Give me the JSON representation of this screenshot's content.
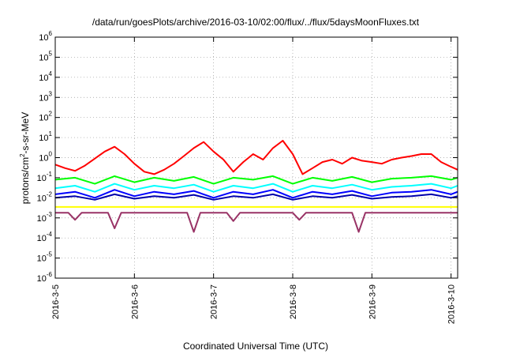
{
  "chart_data": {
    "type": "line",
    "title": "/data/run/goesPlots/archive/2016-03-10/02:00/flux/../flux/5daysMoonFluxes.txt",
    "xlabel": "Coordinated Universal Time (UTC)",
    "ylabel": "protons/cm2-s-sr-MeV",
    "ylabel_parts": [
      "protons/cm",
      "2",
      "-s-sr-MeV"
    ],
    "y_scale": "log",
    "ylim": [
      1e-06,
      1000000.0
    ],
    "xlim": [
      "2016-03-05",
      "2016-03-10 02:00"
    ],
    "grid": true,
    "legend": "none",
    "x_ticks": [
      "2016-3-5",
      "2016-3-6",
      "2016-3-7",
      "2016-3-8",
      "2016-3-9",
      "2016-3-10"
    ],
    "y_ticks": [
      {
        "base": "10",
        "exp": "-6"
      },
      {
        "base": "10",
        "exp": "-5"
      },
      {
        "base": "10",
        "exp": "-4"
      },
      {
        "base": "10",
        "exp": "-3"
      },
      {
        "base": "10",
        "exp": "-2"
      },
      {
        "base": "10",
        "exp": "-1"
      },
      {
        "base": "10",
        "exp": "0"
      },
      {
        "base": "10",
        "exp": "1"
      },
      {
        "base": "10",
        "exp": "2"
      },
      {
        "base": "10",
        "exp": "3"
      },
      {
        "base": "10",
        "exp": "4"
      },
      {
        "base": "10",
        "exp": "5"
      },
      {
        "base": "10",
        "exp": "6"
      }
    ],
    "series": [
      {
        "color": "#ff0000",
        "x": [
          "2016-03-05 00:00",
          "2016-03-05 03:00",
          "2016-03-05 06:00",
          "2016-03-05 09:00",
          "2016-03-05 12:00",
          "2016-03-05 15:00",
          "2016-03-05 18:00",
          "2016-03-05 21:00",
          "2016-03-06 00:00",
          "2016-03-06 03:00",
          "2016-03-06 06:00",
          "2016-03-06 09:00",
          "2016-03-06 12:00",
          "2016-03-06 15:00",
          "2016-03-06 18:00",
          "2016-03-06 21:00",
          "2016-03-07 00:00",
          "2016-03-07 03:00",
          "2016-03-07 06:00",
          "2016-03-07 09:00",
          "2016-03-07 12:00",
          "2016-03-07 15:00",
          "2016-03-07 18:00",
          "2016-03-07 21:00",
          "2016-03-08 00:00",
          "2016-03-08 03:00",
          "2016-03-08 06:00",
          "2016-03-08 09:00",
          "2016-03-08 12:00",
          "2016-03-08 15:00",
          "2016-03-08 18:00",
          "2016-03-08 21:00",
          "2016-03-09 00:00",
          "2016-03-09 03:00",
          "2016-03-09 06:00",
          "2016-03-09 09:00",
          "2016-03-09 12:00",
          "2016-03-09 15:00",
          "2016-03-09 18:00",
          "2016-03-09 21:00",
          "2016-03-10 00:00",
          "2016-03-10 02:00"
        ],
        "y": [
          0.45,
          0.3,
          0.22,
          0.4,
          0.9,
          2.0,
          3.5,
          1.5,
          0.5,
          0.2,
          0.15,
          0.25,
          0.5,
          1.2,
          3.0,
          6.0,
          2.0,
          0.8,
          0.2,
          0.6,
          1.5,
          0.8,
          3.0,
          7.0,
          1.5,
          0.15,
          0.3,
          0.6,
          0.8,
          0.5,
          1.0,
          0.7,
          0.6,
          0.5,
          0.8,
          1.0,
          1.2,
          1.5,
          1.5,
          0.6,
          0.35,
          0.25
        ]
      },
      {
        "color": "#00ff00",
        "x": [
          "2016-03-05 00:00",
          "2016-03-05 06:00",
          "2016-03-05 12:00",
          "2016-03-05 18:00",
          "2016-03-06 00:00",
          "2016-03-06 06:00",
          "2016-03-06 12:00",
          "2016-03-06 18:00",
          "2016-03-07 00:00",
          "2016-03-07 06:00",
          "2016-03-07 12:00",
          "2016-03-07 18:00",
          "2016-03-08 00:00",
          "2016-03-08 06:00",
          "2016-03-08 12:00",
          "2016-03-08 18:00",
          "2016-03-09 00:00",
          "2016-03-09 06:00",
          "2016-03-09 12:00",
          "2016-03-09 18:00",
          "2016-03-10 00:00",
          "2016-03-10 02:00"
        ],
        "y": [
          0.08,
          0.1,
          0.05,
          0.12,
          0.06,
          0.1,
          0.07,
          0.11,
          0.05,
          0.1,
          0.08,
          0.12,
          0.05,
          0.1,
          0.07,
          0.11,
          0.06,
          0.09,
          0.1,
          0.12,
          0.08,
          0.1
        ]
      },
      {
        "color": "#00ffff",
        "x": [
          "2016-03-05 00:00",
          "2016-03-05 06:00",
          "2016-03-05 12:00",
          "2016-03-05 18:00",
          "2016-03-06 00:00",
          "2016-03-06 06:00",
          "2016-03-06 12:00",
          "2016-03-06 18:00",
          "2016-03-07 00:00",
          "2016-03-07 06:00",
          "2016-03-07 12:00",
          "2016-03-07 18:00",
          "2016-03-08 00:00",
          "2016-03-08 06:00",
          "2016-03-08 12:00",
          "2016-03-08 18:00",
          "2016-03-09 00:00",
          "2016-03-09 06:00",
          "2016-03-09 12:00",
          "2016-03-09 18:00",
          "2016-03-10 00:00",
          "2016-03-10 02:00"
        ],
        "y": [
          0.03,
          0.04,
          0.02,
          0.05,
          0.025,
          0.04,
          0.03,
          0.045,
          0.02,
          0.04,
          0.03,
          0.05,
          0.02,
          0.04,
          0.03,
          0.045,
          0.025,
          0.035,
          0.04,
          0.05,
          0.03,
          0.04
        ]
      },
      {
        "color": "#0000ff",
        "x": [
          "2016-03-05 00:00",
          "2016-03-05 06:00",
          "2016-03-05 12:00",
          "2016-03-05 18:00",
          "2016-03-06 00:00",
          "2016-03-06 06:00",
          "2016-03-06 12:00",
          "2016-03-06 18:00",
          "2016-03-07 00:00",
          "2016-03-07 06:00",
          "2016-03-07 12:00",
          "2016-03-07 18:00",
          "2016-03-08 00:00",
          "2016-03-08 06:00",
          "2016-03-08 12:00",
          "2016-03-08 18:00",
          "2016-03-09 00:00",
          "2016-03-09 06:00",
          "2016-03-09 12:00",
          "2016-03-09 18:00",
          "2016-03-10 00:00",
          "2016-03-10 02:00"
        ],
        "y": [
          0.015,
          0.02,
          0.01,
          0.025,
          0.012,
          0.02,
          0.015,
          0.022,
          0.01,
          0.02,
          0.015,
          0.025,
          0.01,
          0.02,
          0.015,
          0.022,
          0.012,
          0.018,
          0.02,
          0.025,
          0.015,
          0.02
        ]
      },
      {
        "color": "#0000aa",
        "x": [
          "2016-03-05 00:00",
          "2016-03-05 06:00",
          "2016-03-05 12:00",
          "2016-03-05 18:00",
          "2016-03-06 00:00",
          "2016-03-06 06:00",
          "2016-03-06 12:00",
          "2016-03-06 18:00",
          "2016-03-07 00:00",
          "2016-03-07 06:00",
          "2016-03-07 12:00",
          "2016-03-07 18:00",
          "2016-03-08 00:00",
          "2016-03-08 06:00",
          "2016-03-08 12:00",
          "2016-03-08 18:00",
          "2016-03-09 00:00",
          "2016-03-09 06:00",
          "2016-03-09 12:00",
          "2016-03-09 18:00",
          "2016-03-10 00:00",
          "2016-03-10 02:00"
        ],
        "y": [
          0.01,
          0.012,
          0.008,
          0.015,
          0.009,
          0.012,
          0.01,
          0.014,
          0.008,
          0.012,
          0.01,
          0.015,
          0.008,
          0.012,
          0.01,
          0.014,
          0.009,
          0.011,
          0.012,
          0.015,
          0.01,
          0.012
        ]
      },
      {
        "color": "#ffff00",
        "x": [
          "2016-03-05 00:00",
          "2016-03-05 12:00",
          "2016-03-06 00:00",
          "2016-03-06 12:00",
          "2016-03-07 00:00",
          "2016-03-07 12:00",
          "2016-03-08 00:00",
          "2016-03-08 12:00",
          "2016-03-09 00:00",
          "2016-03-09 12:00",
          "2016-03-10 00:00",
          "2016-03-10 02:00"
        ],
        "y": [
          0.0035,
          0.0035,
          0.0035,
          0.0035,
          0.0035,
          0.0035,
          0.0035,
          0.0035,
          0.0035,
          0.0035,
          0.0035,
          0.0035
        ]
      },
      {
        "color": "#993366",
        "x": [
          "2016-03-05 00:00",
          "2016-03-05 04:00",
          "2016-03-05 06:00",
          "2016-03-05 08:00",
          "2016-03-05 12:00",
          "2016-03-05 16:00",
          "2016-03-05 18:00",
          "2016-03-05 20:00",
          "2016-03-06 00:00",
          "2016-03-06 12:00",
          "2016-03-06 16:00",
          "2016-03-06 18:00",
          "2016-03-06 20:00",
          "2016-03-07 00:00",
          "2016-03-07 04:00",
          "2016-03-07 06:00",
          "2016-03-07 08:00",
          "2016-03-07 12:00",
          "2016-03-08 00:00",
          "2016-03-08 02:00",
          "2016-03-08 04:00",
          "2016-03-08 12:00",
          "2016-03-08 18:00",
          "2016-03-08 20:00",
          "2016-03-08 22:00",
          "2016-03-09 12:00",
          "2016-03-10 00:00",
          "2016-03-10 02:00"
        ],
        "y": [
          0.0018,
          0.0018,
          0.0008,
          0.0018,
          0.0018,
          0.0018,
          0.0003,
          0.0018,
          0.0018,
          0.0018,
          0.0018,
          0.0002,
          0.0018,
          0.0018,
          0.0018,
          0.0007,
          0.0018,
          0.0018,
          0.0018,
          0.0008,
          0.0018,
          0.0018,
          0.0018,
          0.0002,
          0.0018,
          0.0018,
          0.0018,
          0.0018
        ]
      }
    ]
  }
}
